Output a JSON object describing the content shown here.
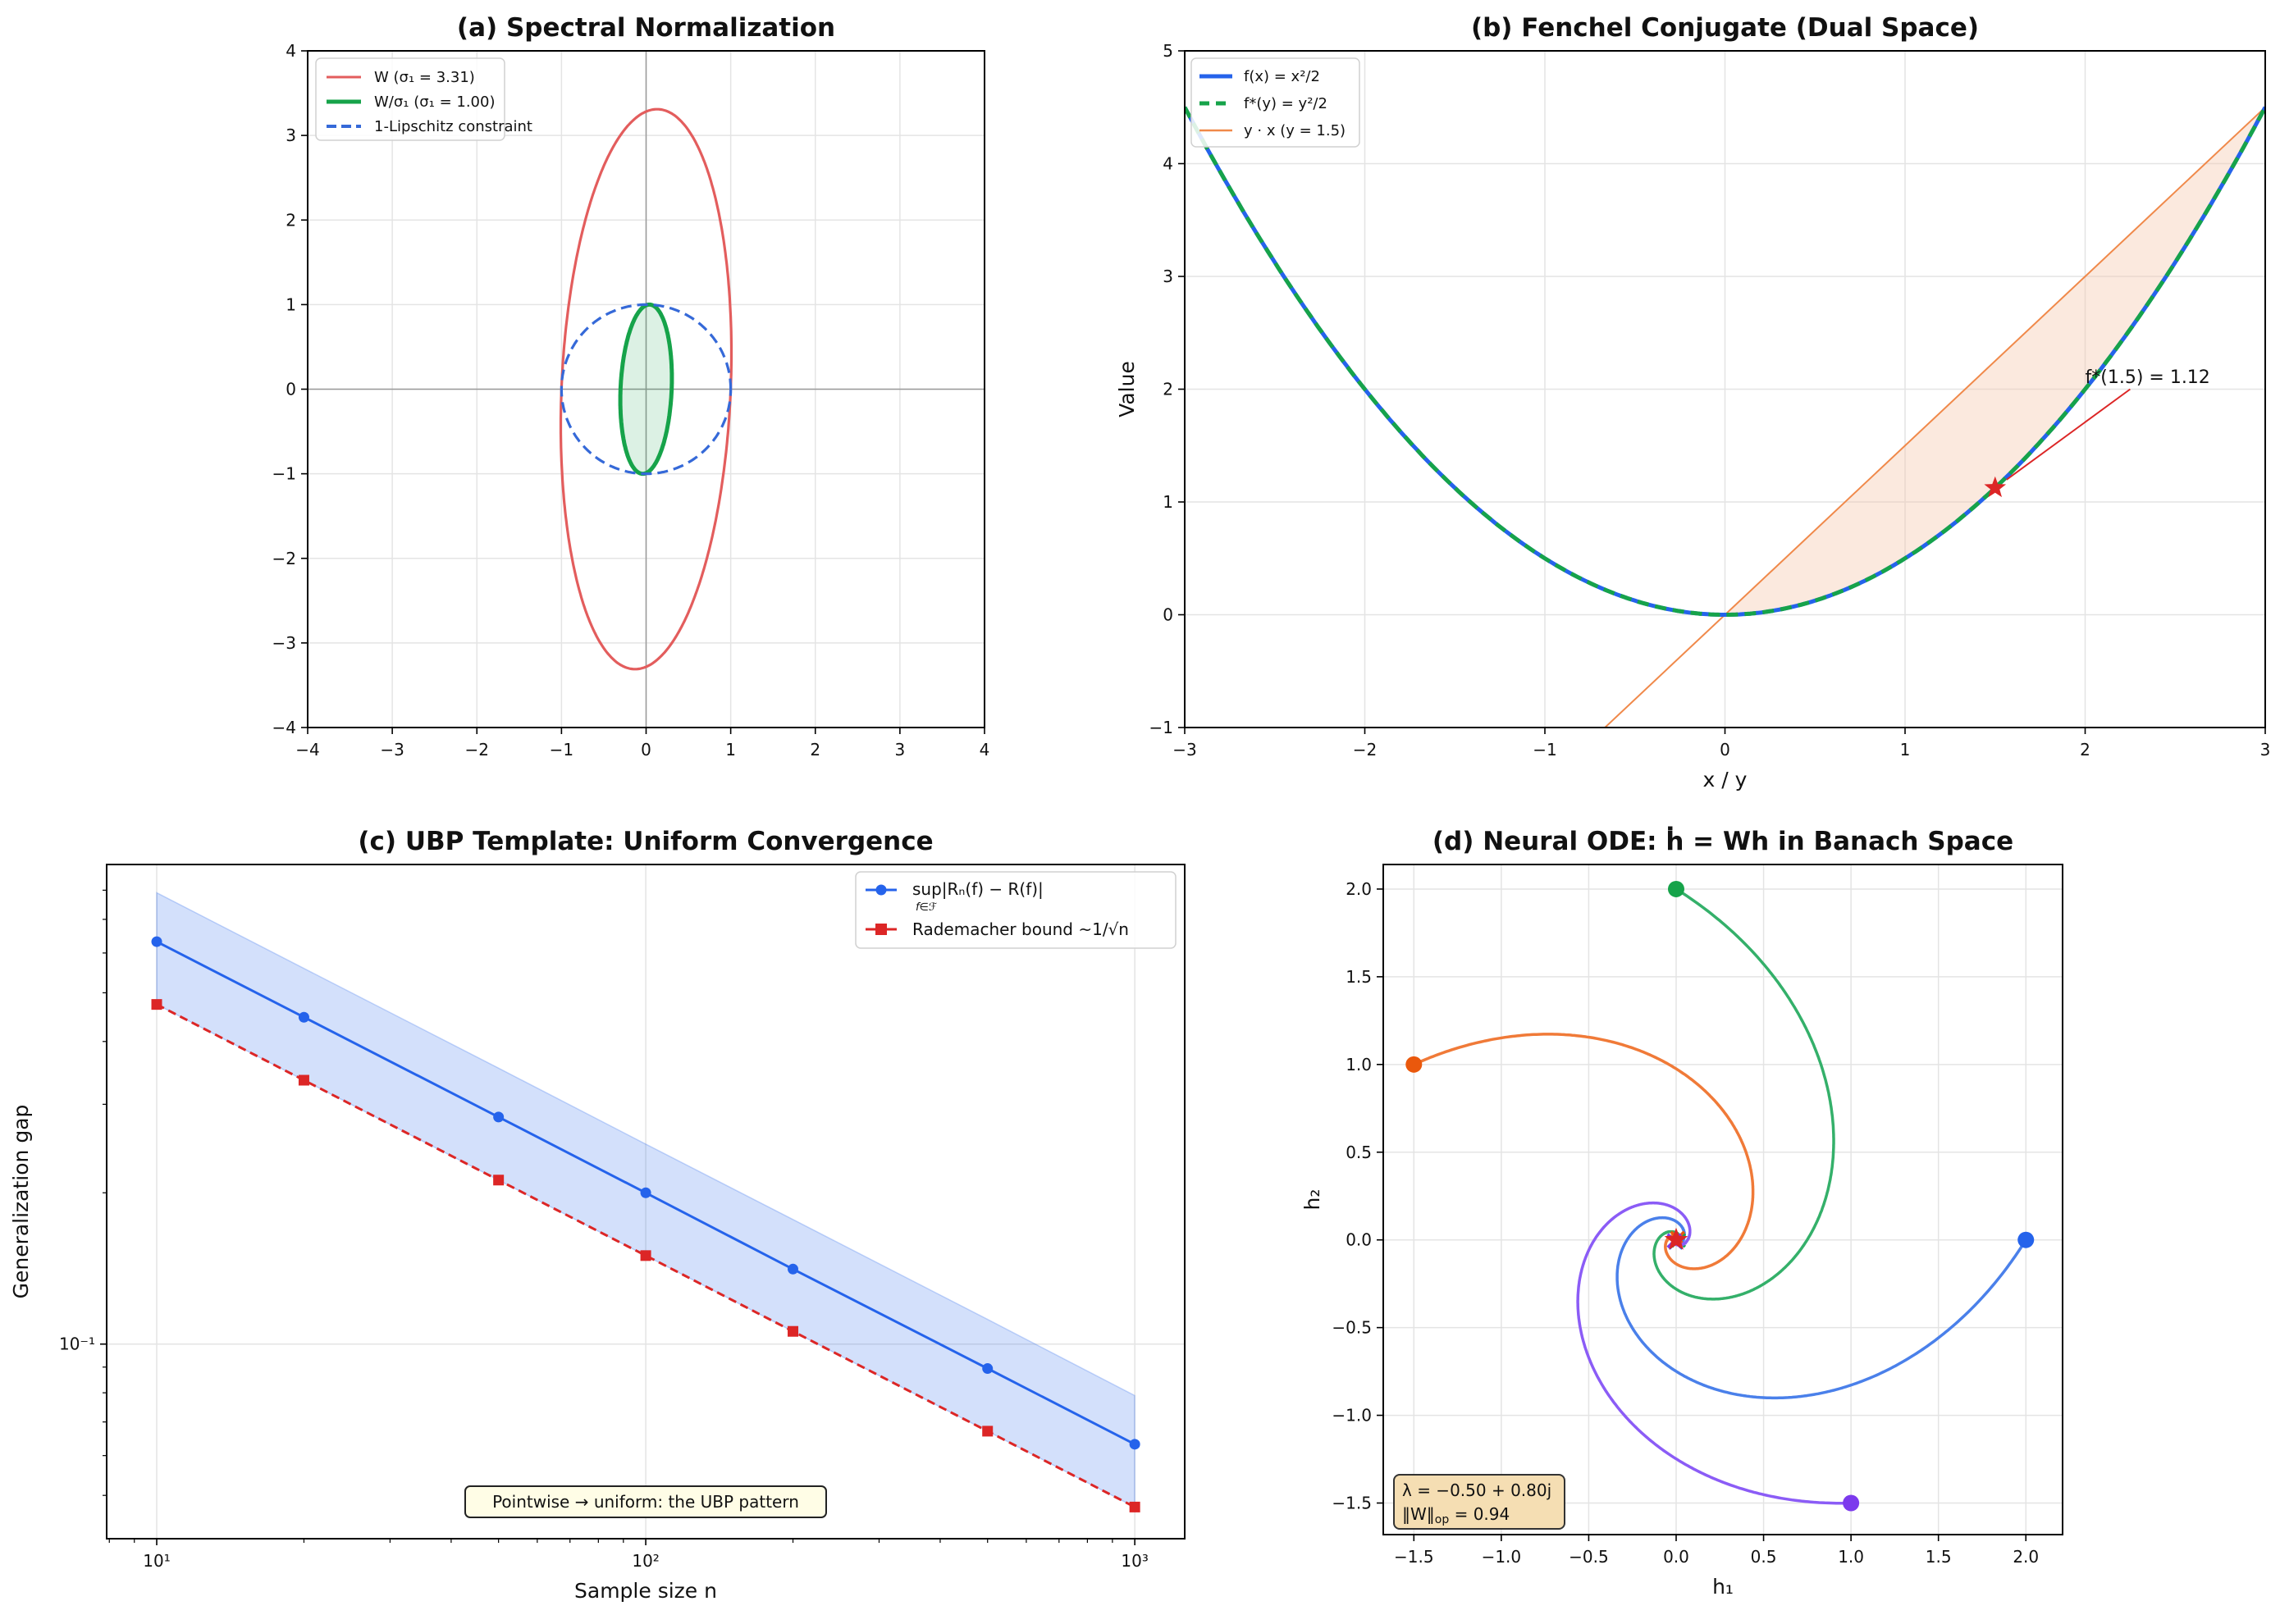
{
  "chart_data": [
    {
      "panel": "a",
      "type": "line",
      "title": "(a) Spectral Normalization",
      "xlabel": "",
      "ylabel": "",
      "xlim": [
        -4,
        4
      ],
      "ylim": [
        -4,
        4
      ],
      "xticks": [
        -4,
        -3,
        -2,
        -1,
        0,
        1,
        2,
        3,
        4
      ],
      "xtick_labels": [
        "−4",
        "−3",
        "−2",
        "−1",
        "0",
        "1",
        "2",
        "3",
        "4"
      ],
      "yticks": [
        -4,
        -3,
        -2,
        -1,
        0,
        1,
        2,
        3,
        4
      ],
      "ytick_labels": [
        "−4",
        "−3",
        "−2",
        "−1",
        "0",
        "1",
        "2",
        "3",
        "4"
      ],
      "grid": true,
      "legend_position": "upper-left",
      "series": [
        {
          "name": "W (σ₁ = 3.31)",
          "shape": "ellipse",
          "matrix": [
            [
              1.0,
              0.13
            ],
            [
              0.0,
              3.31
            ]
          ],
          "scale": 1.0,
          "color": "#e35d5d",
          "style": "solid"
        },
        {
          "name": "W/σ₁ (σ₁ = 1.00)",
          "shape": "ellipse",
          "matrix": [
            [
              1.0,
              0.13
            ],
            [
              0.0,
              3.31
            ]
          ],
          "scale": 0.3021,
          "color": "#16a34a",
          "style": "solid",
          "filled": true
        },
        {
          "name": "1-Lipschitz constraint",
          "shape": "circle",
          "radius": 1,
          "color": "#3569d8",
          "style": "dashed"
        }
      ]
    },
    {
      "panel": "b",
      "type": "line",
      "title": "(b) Fenchel Conjugate (Dual Space)",
      "xlabel": "x / y",
      "ylabel": "Value",
      "xlim": [
        -3,
        3
      ],
      "ylim": [
        -1,
        5
      ],
      "xticks": [
        -3,
        -2,
        -1,
        0,
        1,
        2,
        3
      ],
      "xtick_labels": [
        "−3",
        "−2",
        "−1",
        "0",
        "1",
        "2",
        "3"
      ],
      "yticks": [
        -1,
        0,
        1,
        2,
        3,
        4,
        5
      ],
      "ytick_labels": [
        "−1",
        "0",
        "1",
        "2",
        "3",
        "4",
        "5"
      ],
      "grid": true,
      "legend_position": "upper-left",
      "series": [
        {
          "name": "f(x) = x²/2",
          "function": "x^2/2",
          "color": "#2563eb",
          "style": "solid"
        },
        {
          "name": "f*(y) = y²/2",
          "function": "y^2/2",
          "color": "#16a34a",
          "style": "dashed"
        },
        {
          "name": "y · x (y = 1.5)",
          "function": "1.5*x",
          "color": "#f0894a",
          "style": "solid"
        }
      ],
      "shaded_region": {
        "between": [
          "y · x (y = 1.5)",
          "f(x) = x²/2"
        ],
        "x_range": [
          0,
          3
        ],
        "color": "#f4c9ac"
      },
      "marker": {
        "x": 1.5,
        "y": 1.125,
        "symbol": "star",
        "color": "#dc2626"
      },
      "annotation": {
        "text": "f*(1.5) = 1.12",
        "x": 2.0,
        "y": 2.1,
        "points_to": [
          1.5,
          1.125
        ],
        "color": "#dc2626"
      }
    },
    {
      "panel": "c",
      "type": "line",
      "title": "(c) UBP Template: Uniform Convergence",
      "xlabel": "Sample size n",
      "ylabel": "Generalization gap",
      "xscale": "log",
      "yscale": "log",
      "xlim": [
        7.9,
        1265
      ],
      "ylim": [
        0.041,
        0.9
      ],
      "xticks": [
        10,
        100,
        1000
      ],
      "xtick_labels": [
        "10¹",
        "10²",
        "10³"
      ],
      "yticks": [
        0.1
      ],
      "ytick_labels": [
        "10⁻¹"
      ],
      "grid": true,
      "legend_position": "upper-right",
      "x": [
        10,
        20,
        50,
        100,
        200,
        500,
        1000
      ],
      "series": [
        {
          "name": "sup|Rₙ(f) − R(f)|",
          "name_subscript": "f∈ℱ",
          "values": [
            0.632,
            0.447,
            0.283,
            0.2,
            0.141,
            0.0894,
            0.0632
          ],
          "color": "#2563eb",
          "marker": "circle",
          "style": "solid"
        },
        {
          "name": "Rademacher bound  ~1/√n",
          "values": [
            0.474,
            0.335,
            0.212,
            0.15,
            0.106,
            0.0671,
            0.0474
          ],
          "color": "#dc2626",
          "marker": "square",
          "style": "dashed"
        }
      ],
      "band": {
        "lower": [
          0.474,
          0.335,
          0.212,
          0.15,
          0.106,
          0.0671,
          0.0474
        ],
        "upper": [
          0.791,
          0.559,
          0.354,
          0.25,
          0.177,
          0.112,
          0.079
        ],
        "color": "#2563eb"
      },
      "annotation": {
        "text": "Pointwise → uniform: the UBP pattern"
      }
    },
    {
      "panel": "d",
      "type": "line",
      "title": "(d) Neural ODE: ḣ = Wh in Banach Space",
      "xlabel": "h₁",
      "ylabel": "h₂",
      "xlim": [
        -1.675,
        2.21
      ],
      "ylim": [
        -1.68,
        2.14
      ],
      "xticks": [
        -1.5,
        -1.0,
        -0.5,
        0.0,
        0.5,
        1.0,
        1.5,
        2.0
      ],
      "xtick_labels": [
        "−1.5",
        "−1.0",
        "−0.5",
        "0.0",
        "0.5",
        "1.0",
        "1.5",
        "2.0"
      ],
      "yticks": [
        -1.5,
        -1.0,
        -0.5,
        0.0,
        0.5,
        1.0,
        1.5,
        2.0
      ],
      "ytick_labels": [
        "−1.5",
        "−1.0",
        "−0.5",
        "0.0",
        "0.5",
        "1.0",
        "1.5",
        "2.0"
      ],
      "grid": true,
      "W": [
        [
          -0.5,
          0.8
        ],
        [
          -0.8,
          -0.5
        ]
      ],
      "t_range": [
        0,
        10
      ],
      "trajectories": [
        {
          "start": [
            2.0,
            0.0
          ],
          "color": "#4a80ea",
          "marker_color": "#2563eb"
        },
        {
          "start": [
            0.0,
            2.0
          ],
          "color": "#34b06a",
          "marker_color": "#16a34a"
        },
        {
          "start": [
            -1.5,
            1.0
          ],
          "color": "#f07a38",
          "marker_color": "#ea580c"
        },
        {
          "start": [
            1.0,
            -1.5
          ],
          "color": "#8b5cf6",
          "marker_color": "#7c3aed"
        }
      ],
      "equilibrium": {
        "x": 0,
        "y": 0,
        "symbol": "star",
        "color": "#dc2626"
      },
      "info_box": {
        "line1": "λ = −0.50 + 0.80j",
        "line2_main": "‖W‖",
        "line2_sub": "op",
        "line2_rest": " = 0.94",
        "background": "#f5deb3"
      }
    }
  ]
}
